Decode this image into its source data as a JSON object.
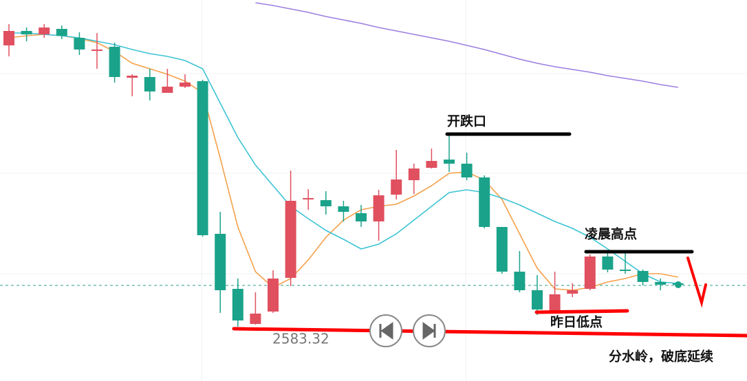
{
  "chart_data": {
    "type": "candlestick",
    "ylim": [
      2575.12,
      2630.52
    ],
    "up_color": "#e0505f",
    "down_color": "#1aa38a",
    "candles": [
      {
        "open": 2623.92,
        "close": 2626.02,
        "high": 2627.02,
        "low": 2622.32
      },
      {
        "open": 2626.02,
        "close": 2625.52,
        "high": 2626.52,
        "low": 2624.52
      },
      {
        "open": 2625.52,
        "close": 2626.52,
        "high": 2627.02,
        "low": 2625.02
      },
      {
        "open": 2626.32,
        "close": 2625.32,
        "high": 2626.82,
        "low": 2624.82
      },
      {
        "open": 2625.02,
        "close": 2623.32,
        "high": 2625.82,
        "low": 2622.52
      },
      {
        "open": 2623.12,
        "close": 2623.32,
        "high": 2625.72,
        "low": 2620.52
      },
      {
        "open": 2623.72,
        "close": 2619.32,
        "high": 2624.32,
        "low": 2618.52
      },
      {
        "open": 2619.22,
        "close": 2619.52,
        "high": 2619.72,
        "low": 2616.52
      },
      {
        "open": 2619.32,
        "close": 2617.22,
        "high": 2620.52,
        "low": 2615.92
      },
      {
        "open": 2617.02,
        "close": 2617.92,
        "high": 2620.52,
        "low": 2617.02
      },
      {
        "open": 2617.92,
        "close": 2618.52,
        "high": 2619.72,
        "low": 2617.72
      },
      {
        "open": 2618.72,
        "close": 2596.32,
        "high": 2618.92,
        "low": 2596.12
      },
      {
        "open": 2596.52,
        "close": 2588.32,
        "high": 2599.72,
        "low": 2585.02
      },
      {
        "open": 2588.52,
        "close": 2583.92,
        "high": 2590.02,
        "low": 2583.02
      },
      {
        "open": 2583.42,
        "close": 2584.92,
        "high": 2588.02,
        "low": 2583.32
      },
      {
        "open": 2585.22,
        "close": 2590.02,
        "high": 2591.22,
        "low": 2585.02
      },
      {
        "open": 2590.12,
        "close": 2601.32,
        "high": 2605.72,
        "low": 2588.92
      },
      {
        "open": 2601.52,
        "close": 2601.72,
        "high": 2603.02,
        "low": 2600.02
      },
      {
        "open": 2601.42,
        "close": 2600.52,
        "high": 2602.72,
        "low": 2599.32
      },
      {
        "open": 2600.52,
        "close": 2599.72,
        "high": 2601.32,
        "low": 2598.32
      },
      {
        "open": 2599.52,
        "close": 2598.32,
        "high": 2600.72,
        "low": 2597.52
      },
      {
        "open": 2598.32,
        "close": 2602.12,
        "high": 2602.92,
        "low": 2595.52
      },
      {
        "open": 2602.22,
        "close": 2604.42,
        "high": 2608.72,
        "low": 2601.52
      },
      {
        "open": 2604.32,
        "close": 2606.02,
        "high": 2606.72,
        "low": 2602.32
      },
      {
        "open": 2606.12,
        "close": 2607.12,
        "high": 2608.92,
        "low": 2606.02
      },
      {
        "open": 2607.32,
        "close": 2606.72,
        "high": 2610.92,
        "low": 2605.52
      },
      {
        "open": 2606.72,
        "close": 2604.72,
        "high": 2608.32,
        "low": 2604.32
      },
      {
        "open": 2604.72,
        "close": 2597.52,
        "high": 2605.02,
        "low": 2597.32
      },
      {
        "open": 2597.52,
        "close": 2591.02,
        "high": 2597.52,
        "low": 2590.72
      },
      {
        "open": 2591.02,
        "close": 2588.32,
        "high": 2594.02,
        "low": 2588.02
      },
      {
        "open": 2588.32,
        "close": 2585.52,
        "high": 2590.52,
        "low": 2584.72
      },
      {
        "open": 2585.32,
        "close": 2587.72,
        "high": 2591.02,
        "low": 2585.02
      },
      {
        "open": 2587.82,
        "close": 2588.32,
        "high": 2589.32,
        "low": 2587.32
      },
      {
        "open": 2588.52,
        "close": 2593.22,
        "high": 2593.52,
        "low": 2588.32
      },
      {
        "open": 2593.22,
        "close": 2591.32,
        "high": 2593.72,
        "low": 2590.92
      },
      {
        "open": 2591.32,
        "close": 2591.12,
        "high": 2593.72,
        "low": 2590.72
      },
      {
        "open": 2591.12,
        "close": 2589.52,
        "high": 2591.32,
        "low": 2589.02
      },
      {
        "open": 2589.52,
        "close": 2589.12,
        "high": 2590.02,
        "low": 2588.32
      },
      {
        "open": 2589.32,
        "close": 2589.12,
        "high": 2589.52,
        "low": 2588.72
      }
    ],
    "series": [
      {
        "color": "#f5a04a",
        "values": [
          2625.02,
          2625.32,
          2625.52,
          2625.32,
          2624.92,
          2624.32,
          2623.02,
          2621.32,
          2620.52,
          2619.72,
          2618.72,
          2617.02,
          2607.52,
          2597.52,
          2591.02,
          2588.72,
          2590.02,
          2592.72,
          2596.02,
          2598.52,
          2600.02,
          2600.52,
          2600.82,
          2602.02,
          2603.52,
          2605.32,
          2605.52,
          2604.32,
          2601.52,
          2596.52,
          2591.52,
          2588.52,
          2588.32,
          2588.72,
          2589.52,
          2590.02,
          2590.72,
          2590.72,
          2590.22
        ]
      },
      {
        "color": "#3cc3d3",
        "values": [
          2625.72,
          2625.72,
          2625.52,
          2625.32,
          2625.02,
          2624.52,
          2624.02,
          2623.32,
          2622.72,
          2622.32,
          2621.72,
          2620.52,
          2615.52,
          2610.52,
          2606.52,
          2603.52,
          2600.52,
          2598.72,
          2597.02,
          2595.72,
          2594.32,
          2595.02,
          2596.52,
          2598.52,
          2600.52,
          2602.52,
          2602.92,
          2602.52,
          2601.72,
          2600.72,
          2599.52,
          2598.32,
          2597.32,
          2596.02,
          2594.32,
          2592.52,
          2590.72,
          2589.52,
          2589.32
        ]
      },
      {
        "color": "#9c7ee0",
        "values": [
          null,
          null,
          null,
          null,
          null,
          null,
          null,
          null,
          null,
          null,
          null,
          null,
          null,
          null,
          2630.12,
          2629.72,
          2629.22,
          2628.72,
          2628.12,
          2627.62,
          2627.12,
          2626.52,
          2626.02,
          2625.52,
          2625.02,
          2624.52,
          2623.92,
          2623.32,
          2622.62,
          2621.92,
          2621.32,
          2620.82,
          2620.42,
          2620.02,
          2619.52,
          2619.12,
          2618.72,
          2618.22,
          2617.82
        ]
      }
    ],
    "low_price": 2583.32,
    "annotations": [
      "开跌口",
      "凌晨高点",
      "昨日低点",
      "分水岭，破底延续"
    ]
  }
}
